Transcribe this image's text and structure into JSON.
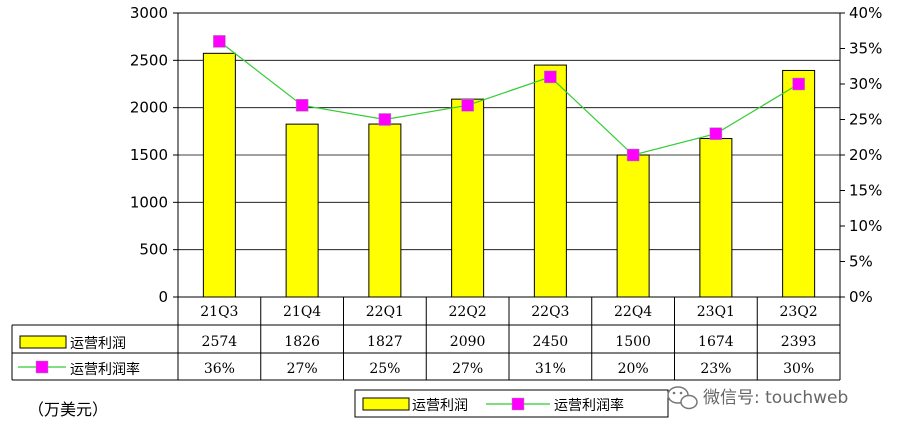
{
  "chart_data": {
    "type": "bar+line",
    "categories": [
      "21Q3",
      "21Q4",
      "22Q1",
      "22Q2",
      "22Q3",
      "22Q4",
      "23Q1",
      "23Q2"
    ],
    "series": [
      {
        "name": "运营利润",
        "type": "bar",
        "axis": "left",
        "values": [
          2574,
          1826,
          1827,
          2090,
          2450,
          1500,
          1674,
          2393
        ],
        "labels": [
          "2574",
          "1826",
          "1827",
          "2090",
          "2450",
          "1500",
          "1674",
          "2393"
        ],
        "color": "#ffff00"
      },
      {
        "name": "运营利润率",
        "type": "line",
        "axis": "right",
        "values": [
          36,
          27,
          25,
          27,
          31,
          20,
          23,
          30
        ],
        "labels": [
          "36%",
          "27%",
          "25%",
          "27%",
          "31%",
          "20%",
          "23%",
          "30%"
        ],
        "line_color": "#33cc33",
        "marker_color": "#ff00ff"
      }
    ],
    "y_left": {
      "range": [
        0,
        3000
      ],
      "ticks": [
        "0",
        "500",
        "1000",
        "1500",
        "2000",
        "2500",
        "3000"
      ]
    },
    "y_right": {
      "range": [
        0,
        40
      ],
      "ticks": [
        "0%",
        "5%",
        "10%",
        "15%",
        "20%",
        "25%",
        "30%",
        "35%",
        "40%"
      ]
    },
    "grid": true,
    "data_table": true,
    "legend_position": "bottom-right",
    "unit_note": "（万美元）"
  },
  "watermark": {
    "icon": "wechat-icon",
    "text": "微信号: touchweb"
  }
}
